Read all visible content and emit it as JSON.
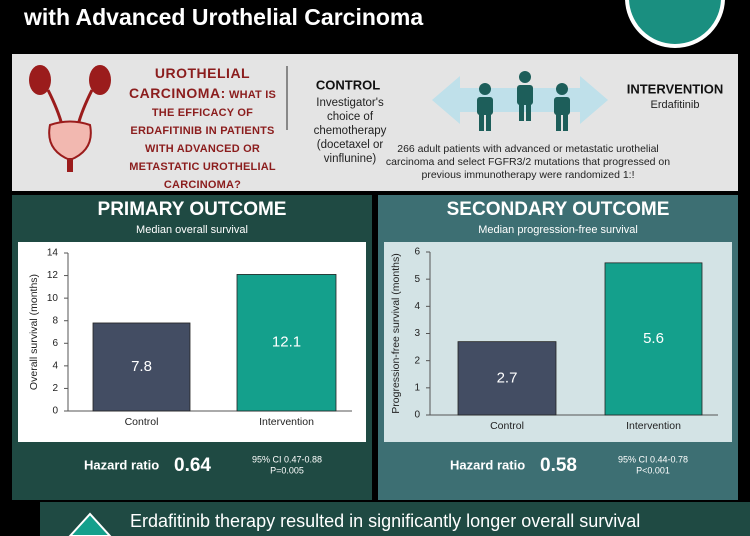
{
  "header": {
    "title": "with Advanced Urothelial Carcinoma"
  },
  "question": {
    "topic": "UROTHELIAL CARCINOMA:",
    "text": "WHAT IS THE EFFICACY OF ERDAFITINIB IN PATIENTS WITH ADVANCED OR METASTATIC UROTHELIAL CARCINOMA?"
  },
  "control": {
    "label": "CONTROL",
    "description": "Investigator's choice of chemotherapy (docetaxel or vinflunine)"
  },
  "intervention": {
    "label": "INTERVENTION",
    "description": "Erdafitinib"
  },
  "population": "266 adult patients with advanced or metastatic urothelial carcinoma and select FGFR3/2 mutations that progressed on previous immunotherapy were randomized 1:!",
  "chart_data": [
    {
      "type": "bar",
      "title": "PRIMARY OUTCOME",
      "subtitle": "Median overall survival",
      "y_label": "Overall survival (months)",
      "categories": [
        "Control",
        "Intervention"
      ],
      "values": [
        7.8,
        12.1
      ],
      "colors": [
        "#434d63",
        "#14a08c"
      ],
      "ylim": [
        0,
        14
      ],
      "yticks": [
        0,
        2,
        4,
        6,
        8,
        10,
        12,
        14
      ],
      "hazard_ratio": {
        "label": "Hazard ratio",
        "value": "0.64",
        "ci": "95% CI 0.47-0.88",
        "p": "P=0.005"
      }
    },
    {
      "type": "bar",
      "title": "SECONDARY OUTCOME",
      "subtitle": "Median progression-free survival",
      "y_label": "Progression-free survival (months)",
      "categories": [
        "Control",
        "Intervention"
      ],
      "values": [
        2.7,
        5.6
      ],
      "colors": [
        "#434d63",
        "#14a08c"
      ],
      "ylim": [
        0,
        6
      ],
      "yticks": [
        0,
        1,
        2,
        3,
        4,
        5,
        6
      ],
      "hazard_ratio": {
        "label": "Hazard ratio",
        "value": "0.58",
        "ci": "95% CI 0.44-0.78",
        "p": "P<0.001"
      }
    }
  ],
  "conclusion": "Erdafitinib therapy resulted in significantly longer overall survival"
}
